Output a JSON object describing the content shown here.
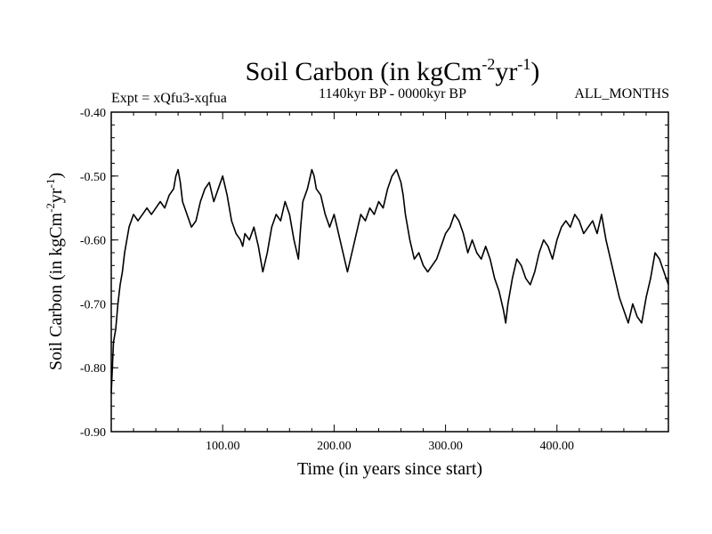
{
  "chart_data": {
    "type": "line",
    "title_main": "Soil Carbon (in kgCm",
    "title_sup1": "-2",
    "title_mid": "yr",
    "title_sup2": "-1",
    "title_end": ")",
    "subtitle_left": "Expt = xQfu3-xqfua",
    "subtitle_center": "1140kyr BP - 0000kyr BP",
    "subtitle_right": "ALL_MONTHS",
    "xlabel": "Time (in years since start)",
    "ylabel_main": "Soil Carbon (in kgCm",
    "ylabel_sup1": "-2",
    "ylabel_mid": "yr",
    "ylabel_sup2": "-1",
    "ylabel_end": ")",
    "xlim": [
      0,
      500
    ],
    "ylim": [
      -0.9,
      -0.4
    ],
    "x_ticks": [
      {
        "value": 100,
        "label": "100.00"
      },
      {
        "value": 200,
        "label": "200.00"
      },
      {
        "value": 300,
        "label": "300.00"
      },
      {
        "value": 400,
        "label": "400.00"
      }
    ],
    "y_ticks": [
      {
        "value": -0.4,
        "label": "-0.40"
      },
      {
        "value": -0.5,
        "label": "-0.50"
      },
      {
        "value": -0.6,
        "label": "-0.60"
      },
      {
        "value": -0.7,
        "label": "-0.70"
      },
      {
        "value": -0.8,
        "label": "-0.80"
      },
      {
        "value": -0.9,
        "label": "-0.90"
      }
    ],
    "series": [
      {
        "name": "soil carbon",
        "x": [
          0,
          2,
          4,
          6,
          8,
          10,
          12,
          14,
          16,
          18,
          20,
          24,
          28,
          32,
          36,
          40,
          44,
          48,
          52,
          56,
          58,
          60,
          62,
          64,
          68,
          72,
          76,
          80,
          84,
          88,
          92,
          96,
          100,
          104,
          108,
          112,
          116,
          118,
          120,
          124,
          128,
          132,
          136,
          140,
          144,
          148,
          152,
          156,
          160,
          164,
          168,
          170,
          172,
          176,
          180,
          182,
          184,
          188,
          192,
          196,
          200,
          204,
          208,
          212,
          216,
          220,
          224,
          228,
          232,
          236,
          240,
          244,
          248,
          252,
          256,
          258,
          260,
          262,
          264,
          268,
          272,
          276,
          280,
          284,
          288,
          292,
          296,
          300,
          304,
          308,
          312,
          316,
          320,
          324,
          328,
          332,
          336,
          340,
          344,
          348,
          352,
          354,
          356,
          360,
          364,
          368,
          372,
          376,
          380,
          384,
          388,
          392,
          396,
          400,
          404,
          408,
          412,
          416,
          420,
          424,
          428,
          432,
          436,
          440,
          444,
          448,
          452,
          456,
          460,
          464,
          468,
          472,
          476,
          480,
          484,
          488,
          492,
          496,
          500
        ],
        "values": [
          -0.84,
          -0.76,
          -0.74,
          -0.7,
          -0.67,
          -0.65,
          -0.62,
          -0.6,
          -0.58,
          -0.57,
          -0.56,
          -0.57,
          -0.56,
          -0.55,
          -0.56,
          -0.55,
          -0.54,
          -0.55,
          -0.53,
          -0.52,
          -0.5,
          -0.49,
          -0.51,
          -0.54,
          -0.56,
          -0.58,
          -0.57,
          -0.54,
          -0.52,
          -0.51,
          -0.54,
          -0.52,
          -0.5,
          -0.53,
          -0.57,
          -0.59,
          -0.6,
          -0.61,
          -0.59,
          -0.6,
          -0.58,
          -0.61,
          -0.65,
          -0.62,
          -0.58,
          -0.56,
          -0.57,
          -0.54,
          -0.56,
          -0.6,
          -0.63,
          -0.58,
          -0.54,
          -0.52,
          -0.49,
          -0.5,
          -0.52,
          -0.53,
          -0.56,
          -0.58,
          -0.56,
          -0.59,
          -0.62,
          -0.65,
          -0.62,
          -0.59,
          -0.56,
          -0.57,
          -0.55,
          -0.56,
          -0.54,
          -0.55,
          -0.52,
          -0.5,
          -0.49,
          -0.5,
          -0.51,
          -0.53,
          -0.56,
          -0.6,
          -0.63,
          -0.62,
          -0.64,
          -0.65,
          -0.64,
          -0.63,
          -0.61,
          -0.59,
          -0.58,
          -0.56,
          -0.57,
          -0.59,
          -0.62,
          -0.6,
          -0.62,
          -0.63,
          -0.61,
          -0.63,
          -0.66,
          -0.68,
          -0.71,
          -0.73,
          -0.7,
          -0.66,
          -0.63,
          -0.64,
          -0.66,
          -0.67,
          -0.65,
          -0.62,
          -0.6,
          -0.61,
          -0.63,
          -0.6,
          -0.58,
          -0.57,
          -0.58,
          -0.56,
          -0.57,
          -0.59,
          -0.58,
          -0.57,
          -0.59,
          -0.56,
          -0.6,
          -0.63,
          -0.66,
          -0.69,
          -0.71,
          -0.73,
          -0.7,
          -0.72,
          -0.73,
          -0.69,
          -0.66,
          -0.62,
          -0.63,
          -0.65,
          -0.67
        ]
      }
    ]
  }
}
